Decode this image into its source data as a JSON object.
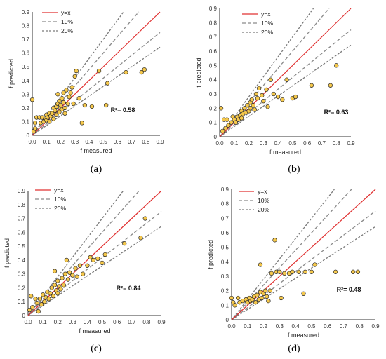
{
  "colors": {
    "marker_fill": "#f5c84c",
    "marker_stroke": "#2a2a2a",
    "ideal_line": "#e03030",
    "band10": "#8a8a8a",
    "band20": "#7a7a7a",
    "axis": "#333333"
  },
  "legend": [
    {
      "label": "y=x",
      "style": "solid",
      "color": "#e03030"
    },
    {
      "label": "10%",
      "style": "dash",
      "color": "#8a8a8a"
    },
    {
      "label": "20%",
      "style": "dot",
      "color": "#7a7a7a"
    }
  ],
  "chart_data": [
    {
      "type": "scatter",
      "panel_label": "a",
      "xlabel": "f  measured",
      "ylabel": "f  predicted",
      "xlim": [
        0,
        0.9
      ],
      "ylim": [
        0,
        0.9
      ],
      "xticks": [
        "0.0",
        "0.1",
        "0.2",
        "0.3",
        "0.4",
        "0.5",
        "0.6",
        "0.7",
        "0.8",
        "0.9"
      ],
      "yticks": [
        "0",
        "0.1",
        "0.2",
        "0.3",
        "0.4",
        "0.5",
        "0.6",
        "0.7",
        "0.8",
        "0.9"
      ],
      "r2_label": "R²= 0.58",
      "lines": [
        "y=x",
        "10%",
        "20%"
      ],
      "points": [
        [
          0.0,
          0.26
        ],
        [
          0.01,
          0.03
        ],
        [
          0.02,
          0.09
        ],
        [
          0.02,
          0.05
        ],
        [
          0.03,
          0.13
        ],
        [
          0.05,
          0.13
        ],
        [
          0.06,
          0.09
        ],
        [
          0.07,
          0.13
        ],
        [
          0.08,
          0.1
        ],
        [
          0.09,
          0.12
        ],
        [
          0.1,
          0.11
        ],
        [
          0.1,
          0.15
        ],
        [
          0.11,
          0.13
        ],
        [
          0.12,
          0.16
        ],
        [
          0.12,
          0.1
        ],
        [
          0.13,
          0.14
        ],
        [
          0.14,
          0.16
        ],
        [
          0.15,
          0.12
        ],
        [
          0.15,
          0.2
        ],
        [
          0.16,
          0.18
        ],
        [
          0.17,
          0.15
        ],
        [
          0.17,
          0.21
        ],
        [
          0.18,
          0.23
        ],
        [
          0.18,
          0.3
        ],
        [
          0.19,
          0.17
        ],
        [
          0.19,
          0.25
        ],
        [
          0.2,
          0.2
        ],
        [
          0.2,
          0.22
        ],
        [
          0.21,
          0.27
        ],
        [
          0.21,
          0.19
        ],
        [
          0.22,
          0.24
        ],
        [
          0.22,
          0.31
        ],
        [
          0.23,
          0.2
        ],
        [
          0.23,
          0.16
        ],
        [
          0.24,
          0.33
        ],
        [
          0.25,
          0.23
        ],
        [
          0.26,
          0.28
        ],
        [
          0.27,
          0.31
        ],
        [
          0.28,
          0.35
        ],
        [
          0.29,
          0.23
        ],
        [
          0.3,
          0.43
        ],
        [
          0.31,
          0.47
        ],
        [
          0.33,
          0.27
        ],
        [
          0.35,
          0.09
        ],
        [
          0.37,
          0.22
        ],
        [
          0.42,
          0.21
        ],
        [
          0.47,
          0.47
        ],
        [
          0.52,
          0.22
        ],
        [
          0.53,
          0.38
        ],
        [
          0.66,
          0.46
        ],
        [
          0.77,
          0.46
        ],
        [
          0.79,
          0.48
        ]
      ]
    },
    {
      "type": "scatter",
      "panel_label": "b",
      "xlabel": "f  measured",
      "ylabel": "f  predicted",
      "xlim": [
        0,
        0.9
      ],
      "ylim": [
        0,
        0.9
      ],
      "xticks": [
        "0.0",
        "0.1",
        "0.2",
        "0.3",
        "0.4",
        "0.5",
        "0.6",
        "0.7",
        "0.8",
        "0.9"
      ],
      "yticks": [
        "0",
        "0.1",
        "0.2",
        "0.3",
        "0.4",
        "0.5",
        "0.6",
        "0.7",
        "0.8",
        "0.9"
      ],
      "r2_label": "R²= 0.63",
      "lines": [
        "y=x",
        "10%",
        "20%"
      ],
      "points": [
        [
          0.01,
          0.2
        ],
        [
          0.02,
          0.04
        ],
        [
          0.03,
          0.12
        ],
        [
          0.04,
          0.06
        ],
        [
          0.05,
          0.12
        ],
        [
          0.06,
          0.08
        ],
        [
          0.08,
          0.1
        ],
        [
          0.09,
          0.14
        ],
        [
          0.1,
          0.12
        ],
        [
          0.11,
          0.1
        ],
        [
          0.12,
          0.14
        ],
        [
          0.13,
          0.12
        ],
        [
          0.14,
          0.15
        ],
        [
          0.15,
          0.18
        ],
        [
          0.15,
          0.13
        ],
        [
          0.16,
          0.16
        ],
        [
          0.17,
          0.2
        ],
        [
          0.18,
          0.17
        ],
        [
          0.19,
          0.22
        ],
        [
          0.2,
          0.18
        ],
        [
          0.21,
          0.24
        ],
        [
          0.21,
          0.2
        ],
        [
          0.22,
          0.26
        ],
        [
          0.23,
          0.22
        ],
        [
          0.24,
          0.19
        ],
        [
          0.25,
          0.3
        ],
        [
          0.26,
          0.27
        ],
        [
          0.27,
          0.34
        ],
        [
          0.29,
          0.29
        ],
        [
          0.3,
          0.25
        ],
        [
          0.32,
          0.33
        ],
        [
          0.33,
          0.21
        ],
        [
          0.35,
          0.4
        ],
        [
          0.37,
          0.3
        ],
        [
          0.4,
          0.28
        ],
        [
          0.43,
          0.26
        ],
        [
          0.46,
          0.4
        ],
        [
          0.5,
          0.27
        ],
        [
          0.52,
          0.28
        ],
        [
          0.63,
          0.36
        ],
        [
          0.76,
          0.36
        ],
        [
          0.8,
          0.5
        ]
      ]
    },
    {
      "type": "scatter",
      "panel_label": "c",
      "xlabel": "f  measured",
      "ylabel": "f  predicted",
      "xlim": [
        0,
        0.9
      ],
      "ylim": [
        0,
        0.9
      ],
      "xticks": [
        "0.0",
        "0.1",
        "0.2",
        "0.3",
        "0.4",
        "0.5",
        "0.6",
        "0.7",
        "0.8",
        "0.9"
      ],
      "yticks": [
        "0",
        "0.1",
        "0.2",
        "0.3",
        "0.4",
        "0.5",
        "0.6",
        "0.7",
        "0.8",
        "0.9"
      ],
      "r2_label": "R²= 0.84",
      "lines": [
        "y=x",
        "10%",
        "20%"
      ],
      "points": [
        [
          0.01,
          0.04
        ],
        [
          0.02,
          0.14
        ],
        [
          0.03,
          0.06
        ],
        [
          0.05,
          0.12
        ],
        [
          0.06,
          0.09
        ],
        [
          0.07,
          0.03
        ],
        [
          0.08,
          0.12
        ],
        [
          0.09,
          0.08
        ],
        [
          0.1,
          0.15
        ],
        [
          0.11,
          0.1
        ],
        [
          0.12,
          0.13
        ],
        [
          0.13,
          0.17
        ],
        [
          0.14,
          0.12
        ],
        [
          0.15,
          0.16
        ],
        [
          0.16,
          0.2
        ],
        [
          0.17,
          0.14
        ],
        [
          0.18,
          0.22
        ],
        [
          0.18,
          0.32
        ],
        [
          0.19,
          0.18
        ],
        [
          0.2,
          0.25
        ],
        [
          0.2,
          0.16
        ],
        [
          0.21,
          0.21
        ],
        [
          0.22,
          0.19
        ],
        [
          0.23,
          0.27
        ],
        [
          0.24,
          0.22
        ],
        [
          0.25,
          0.3
        ],
        [
          0.26,
          0.4
        ],
        [
          0.27,
          0.26
        ],
        [
          0.28,
          0.31
        ],
        [
          0.3,
          0.29
        ],
        [
          0.32,
          0.34
        ],
        [
          0.33,
          0.28
        ],
        [
          0.35,
          0.36
        ],
        [
          0.37,
          0.3
        ],
        [
          0.4,
          0.36
        ],
        [
          0.42,
          0.42
        ],
        [
          0.44,
          0.4
        ],
        [
          0.47,
          0.41
        ],
        [
          0.5,
          0.38
        ],
        [
          0.52,
          0.44
        ],
        [
          0.65,
          0.52
        ],
        [
          0.76,
          0.56
        ],
        [
          0.79,
          0.7
        ]
      ]
    },
    {
      "type": "scatter",
      "panel_label": "d",
      "xlabel": "f  measured",
      "ylabel": "f  predicted",
      "xlim": [
        0,
        0.9
      ],
      "ylim": [
        0,
        0.9
      ],
      "xticks": [
        "0.0",
        "0.1",
        "0.2",
        "0.3",
        "0.4",
        "0.5",
        "0.6",
        "0.7",
        "0.8",
        "0.9"
      ],
      "yticks": [
        "0",
        "0.1",
        "0.2",
        "0.3",
        "0.4",
        "0.5",
        "0.6",
        "0.7",
        "0.8",
        "0.9"
      ],
      "r2_label": "R²= 0.48",
      "lines": [
        "y=x",
        "10%",
        "20%"
      ],
      "points": [
        [
          0.0,
          0.15
        ],
        [
          0.01,
          0.12
        ],
        [
          0.02,
          0.1
        ],
        [
          0.04,
          0.15
        ],
        [
          0.05,
          0.12
        ],
        [
          0.07,
          0.13
        ],
        [
          0.09,
          0.14
        ],
        [
          0.1,
          0.12
        ],
        [
          0.11,
          0.15
        ],
        [
          0.12,
          0.13
        ],
        [
          0.13,
          0.14
        ],
        [
          0.14,
          0.16
        ],
        [
          0.15,
          0.12
        ],
        [
          0.16,
          0.17
        ],
        [
          0.17,
          0.14
        ],
        [
          0.18,
          0.19
        ],
        [
          0.18,
          0.38
        ],
        [
          0.19,
          0.15
        ],
        [
          0.2,
          0.18
        ],
        [
          0.21,
          0.2
        ],
        [
          0.22,
          0.16
        ],
        [
          0.23,
          0.13
        ],
        [
          0.24,
          0.2
        ],
        [
          0.25,
          0.32
        ],
        [
          0.27,
          0.55
        ],
        [
          0.28,
          0.33
        ],
        [
          0.3,
          0.33
        ],
        [
          0.31,
          0.15
        ],
        [
          0.33,
          0.32
        ],
        [
          0.36,
          0.32
        ],
        [
          0.38,
          0.33
        ],
        [
          0.42,
          0.33
        ],
        [
          0.45,
          0.18
        ],
        [
          0.46,
          0.33
        ],
        [
          0.5,
          0.33
        ],
        [
          0.52,
          0.38
        ],
        [
          0.65,
          0.33
        ],
        [
          0.76,
          0.33
        ],
        [
          0.79,
          0.33
        ]
      ]
    }
  ]
}
